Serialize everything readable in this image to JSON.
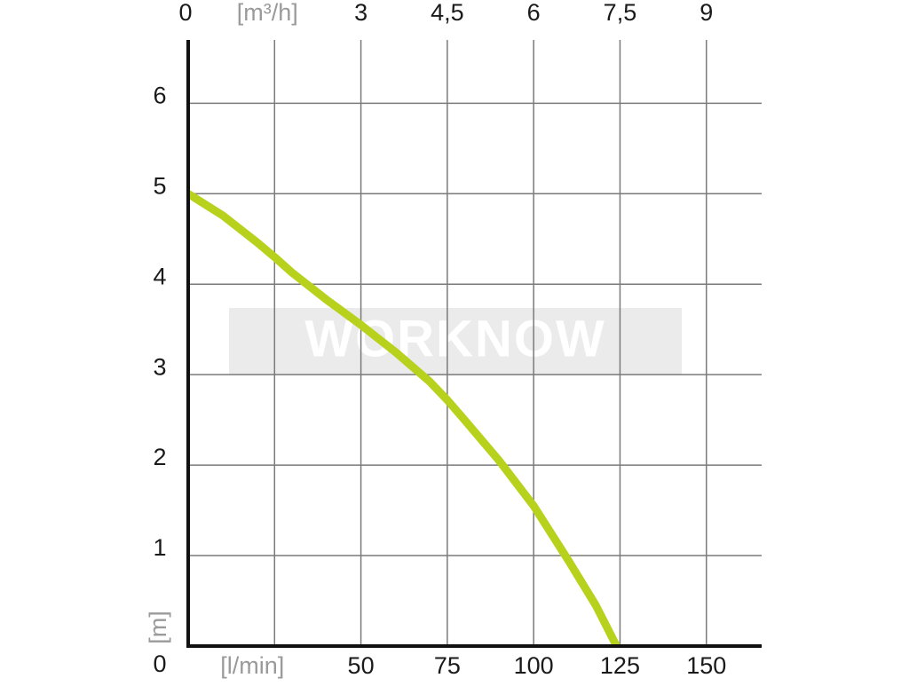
{
  "chart_data": {
    "type": "line",
    "watermark": "WORKNOW",
    "y_label": "[m]",
    "x": [
      0,
      10,
      20,
      25,
      30,
      40,
      50,
      60,
      70,
      75,
      80,
      90,
      100,
      110,
      118,
      124
    ],
    "series": [
      {
        "color": "#b8d11c",
        "values": [
          5,
          4.76,
          4.46,
          4.3,
          4.13,
          3.83,
          3.55,
          3.25,
          2.92,
          2.72,
          2.5,
          2.05,
          1.55,
          0.95,
          0.45,
          0
        ]
      }
    ],
    "xlim": [
      0,
      166
    ],
    "xticks": [
      {
        "value": 25,
        "label": "[l/min]"
      },
      50,
      75,
      100,
      125,
      150
    ],
    "x2lim": [
      0,
      9.96
    ],
    "x2ticks": [
      0,
      {
        "value": 1.5,
        "label": "[m³/h]"
      },
      3,
      {
        "value": 4.5,
        "label": "4,5"
      },
      6,
      {
        "value": 7.5,
        "label": "7,5"
      },
      9
    ],
    "ylim": [
      0,
      6.7
    ],
    "yticks": [
      0,
      1,
      2,
      3,
      4,
      5,
      6
    ],
    "grid": true
  }
}
